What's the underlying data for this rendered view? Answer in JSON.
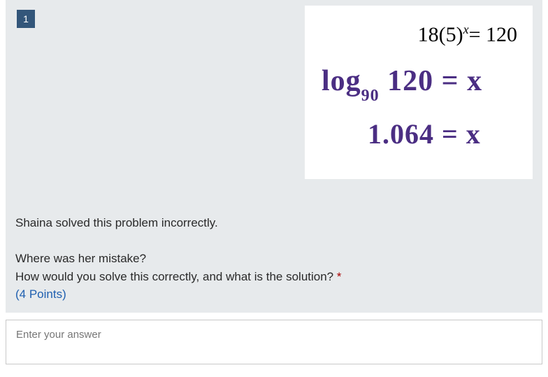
{
  "question": {
    "number": "1",
    "typed_equation": {
      "base": "18(5)",
      "exponent": "x",
      "rhs": "= 120"
    },
    "handwritten": {
      "line1_prefix": "log",
      "line1_sub": "90",
      "line1_rest": " 120 = x",
      "line2": "1.064 = x",
      "ink_color": "#4b2e83"
    },
    "prompt_line1": "Shaina solved this problem incorrectly.",
    "prompt_line2": "Where was her mistake?",
    "prompt_line3": "How would you solve this correctly, and what is the solution? ",
    "required_mark": "*",
    "points_label": "(4 Points)"
  },
  "answer": {
    "placeholder": "Enter your answer",
    "value": ""
  },
  "colors": {
    "card_bg": "#e7eaec",
    "number_bg": "#33567a",
    "points_text": "#2060b0",
    "required": "#a80000"
  }
}
